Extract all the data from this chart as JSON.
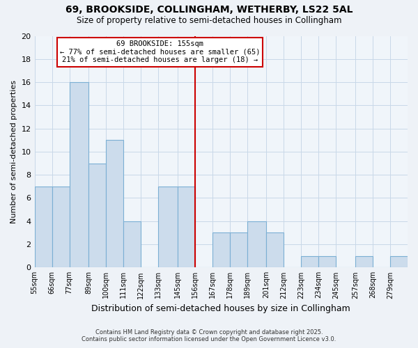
{
  "title": "69, BROOKSIDE, COLLINGHAM, WETHERBY, LS22 5AL",
  "subtitle": "Size of property relative to semi-detached houses in Collingham",
  "xlabel": "Distribution of semi-detached houses by size in Collingham",
  "ylabel": "Number of semi-detached properties",
  "bin_labels": [
    "55sqm",
    "66sqm",
    "77sqm",
    "89sqm",
    "100sqm",
    "111sqm",
    "122sqm",
    "133sqm",
    "145sqm",
    "156sqm",
    "167sqm",
    "178sqm",
    "189sqm",
    "201sqm",
    "212sqm",
    "223sqm",
    "234sqm",
    "245sqm",
    "257sqm",
    "268sqm",
    "279sqm"
  ],
  "bin_edges": [
    55,
    66,
    77,
    89,
    100,
    111,
    122,
    133,
    145,
    156,
    167,
    178,
    189,
    201,
    212,
    223,
    234,
    245,
    257,
    268,
    279,
    290
  ],
  "bar_values": [
    7,
    7,
    16,
    9,
    11,
    4,
    0,
    7,
    7,
    0,
    3,
    3,
    4,
    3,
    0,
    1,
    1,
    0,
    1,
    0,
    1
  ],
  "bar_color": "#ccdcec",
  "bar_edge_color": "#7bafd4",
  "grid_color": "#c8d8e8",
  "reference_line_x": 156,
  "reference_line_color": "#cc0000",
  "annotation_title": "69 BROOKSIDE: 155sqm",
  "annotation_line1": "← 77% of semi-detached houses are smaller (65)",
  "annotation_line2": "21% of semi-detached houses are larger (18) →",
  "annotation_box_color": "#ffffff",
  "annotation_box_edge": "#cc0000",
  "ylim": [
    0,
    20
  ],
  "yticks": [
    0,
    2,
    4,
    6,
    8,
    10,
    12,
    14,
    16,
    18,
    20
  ],
  "footer_line1": "Contains HM Land Registry data © Crown copyright and database right 2025.",
  "footer_line2": "Contains public sector information licensed under the Open Government Licence v3.0.",
  "bg_color": "#eef2f7",
  "plot_bg_color": "#f0f5fa"
}
